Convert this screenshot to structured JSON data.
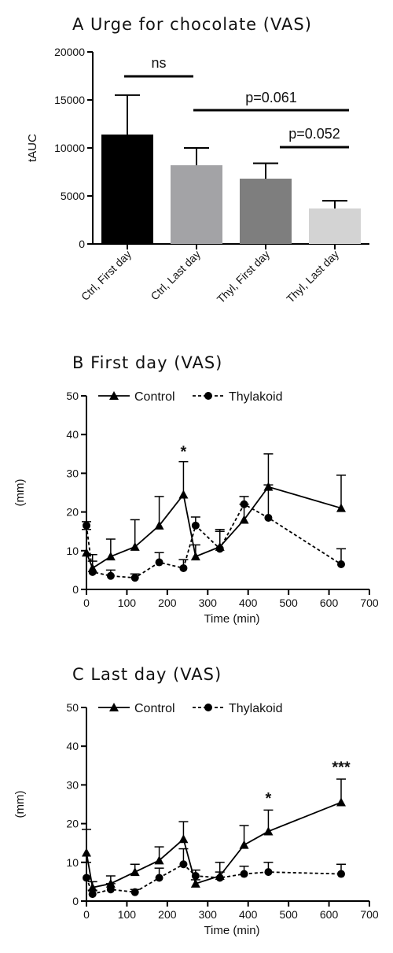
{
  "chart_data": [
    {
      "type": "bar",
      "panel_label": "A",
      "title": "Urge for chocolate (VAS)",
      "ylabel": "tAUC",
      "xlabel": "",
      "ylim": [
        0,
        20000
      ],
      "yticks": [
        0,
        5000,
        10000,
        15000,
        20000
      ],
      "categories": [
        "Ctrl, First day",
        "Ctrl, Last day",
        "Thyl, First day",
        "Thyl, Last day"
      ],
      "values": [
        11400,
        8200,
        6800,
        3700
      ],
      "errors": [
        4100,
        1800,
        1600,
        800
      ],
      "colors": [
        "#000000",
        "#a3a3a6",
        "#7e7e7e",
        "#d3d3d3"
      ],
      "annotations": [
        {
          "text": "ns",
          "from": 0,
          "to": 1
        },
        {
          "text": "p=0.061",
          "from": 1,
          "to": 3
        },
        {
          "text": "p=0.052",
          "from": 2,
          "to": 3
        }
      ]
    },
    {
      "type": "line",
      "panel_label": "B",
      "title": "First day (VAS)",
      "xlabel": "Time (min)",
      "ylabel": "(mm)",
      "xlim": [
        0,
        700
      ],
      "ylim": [
        0,
        50
      ],
      "xticks": [
        0,
        100,
        200,
        300,
        400,
        500,
        600,
        700
      ],
      "yticks": [
        0,
        10,
        20,
        30,
        40,
        50
      ],
      "series": [
        {
          "name": "Control",
          "marker": "triangle",
          "dashed": false,
          "x": [
            0,
            15,
            60,
            120,
            180,
            240,
            270,
            330,
            390,
            450,
            630
          ],
          "y": [
            9.5,
            5.5,
            8.5,
            11,
            16.5,
            24.5,
            8.5,
            11,
            18,
            26.5,
            21
          ],
          "err": [
            6,
            3.5,
            4.5,
            7,
            7.5,
            8.5,
            3,
            4.5,
            4,
            8.5,
            8.5
          ]
        },
        {
          "name": "Thylakoid",
          "marker": "circle",
          "dashed": true,
          "x": [
            0,
            15,
            60,
            120,
            180,
            240,
            270,
            330,
            390,
            450,
            630
          ],
          "y": [
            16.5,
            4.5,
            3.5,
            3,
            7,
            5.5,
            16.5,
            10.5,
            22,
            18.5,
            6.5
          ],
          "err": [
            1,
            2.8,
            1.5,
            1,
            2.5,
            2.2,
            2.2,
            4.5,
            2,
            8.5,
            4
          ]
        }
      ],
      "stars": [
        {
          "x": 240,
          "y": 33,
          "text": "*"
        }
      ]
    },
    {
      "type": "line",
      "panel_label": "C",
      "title": "Last day (VAS)",
      "xlabel": "Time (min)",
      "ylabel": "(mm)",
      "xlim": [
        0,
        700
      ],
      "ylim": [
        0,
        50
      ],
      "xticks": [
        0,
        100,
        200,
        300,
        400,
        500,
        600,
        700
      ],
      "yticks": [
        0,
        10,
        20,
        30,
        40,
        50
      ],
      "series": [
        {
          "name": "Control",
          "marker": "triangle",
          "dashed": false,
          "x": [
            0,
            15,
            60,
            120,
            180,
            240,
            270,
            330,
            390,
            450,
            630
          ],
          "y": [
            12.5,
            3.5,
            4.5,
            7.5,
            10.5,
            16,
            4.5,
            6.5,
            14.5,
            18,
            25.5
          ],
          "err": [
            6,
            1.5,
            2,
            2,
            3.5,
            4.5,
            1,
            3.5,
            5,
            5.5,
            6
          ]
        },
        {
          "name": "Thylakoid",
          "marker": "circle",
          "dashed": true,
          "x": [
            0,
            15,
            60,
            120,
            180,
            240,
            270,
            330,
            390,
            450,
            630
          ],
          "y": [
            6,
            1.8,
            3,
            2.3,
            6,
            9.5,
            6.5,
            6,
            7,
            7.5,
            7
          ],
          "err": [
            4,
            1,
            1.5,
            0.7,
            2.5,
            4,
            1.5,
            1.5,
            2,
            2.5,
            2.5
          ]
        }
      ],
      "stars": [
        {
          "x": 450,
          "y": 24,
          "text": "*"
        },
        {
          "x": 630,
          "y": 32,
          "text": "***"
        }
      ]
    }
  ]
}
